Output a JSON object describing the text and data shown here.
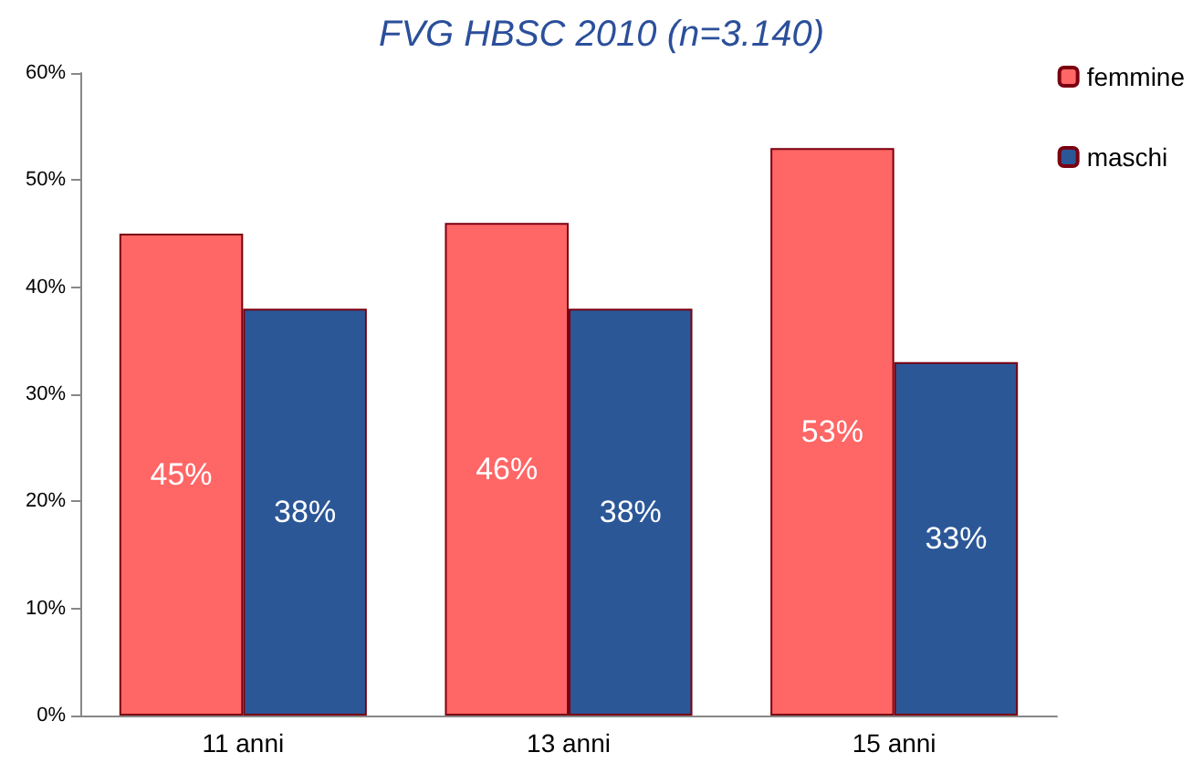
{
  "chart_data": {
    "type": "bar",
    "title": "FVG HBSC 2010 (n=3.140)",
    "categories": [
      "11 anni",
      "13 anni",
      "15 anni"
    ],
    "series": [
      {
        "name": "femmine",
        "color": "#ff6666",
        "values": [
          45,
          46,
          53
        ],
        "value_labels": [
          "45%",
          "46%",
          "53%"
        ]
      },
      {
        "name": "maschi",
        "color": "#2b5797",
        "values": [
          38,
          38,
          33
        ],
        "value_labels": [
          "38%",
          "38%",
          "33%"
        ]
      }
    ],
    "ylim": [
      0,
      60
    ],
    "yticks": [
      {
        "value": 0,
        "label": "0%"
      },
      {
        "value": 10,
        "label": "10%"
      },
      {
        "value": 20,
        "label": "20%"
      },
      {
        "value": 30,
        "label": "30%"
      },
      {
        "value": 40,
        "label": "40%"
      },
      {
        "value": 50,
        "label": "50%"
      },
      {
        "value": 60,
        "label": "60%"
      }
    ],
    "grid": false,
    "legend": "top right"
  }
}
